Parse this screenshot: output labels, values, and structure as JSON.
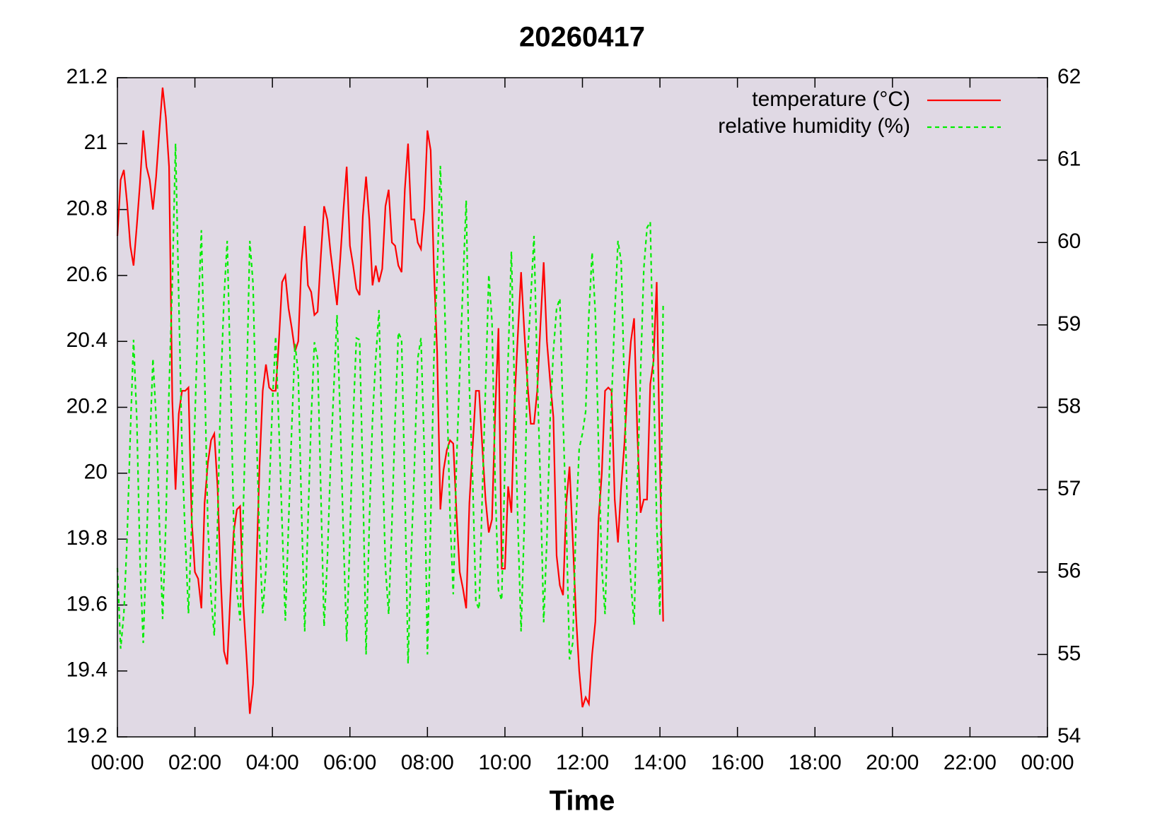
{
  "chart_data": {
    "type": "line",
    "title": "20260417",
    "xlabel": "Time",
    "x": [
      0,
      5,
      10,
      15,
      20,
      25,
      30,
      35,
      40,
      45,
      50,
      55,
      60,
      65,
      70,
      75,
      80,
      85,
      90,
      95,
      100,
      105,
      110,
      115,
      120,
      125,
      130,
      135,
      140,
      145,
      150,
      155,
      160,
      165,
      170,
      175,
      180,
      185,
      190,
      195,
      200,
      205,
      210,
      215,
      220,
      225,
      230,
      235,
      240,
      245,
      250,
      255,
      260,
      265,
      270,
      275,
      280,
      285,
      290,
      295,
      300,
      305,
      310,
      315,
      320,
      325,
      330,
      335,
      340,
      345,
      350,
      355,
      360,
      365,
      370,
      375,
      380,
      385,
      390,
      395,
      400,
      405,
      410,
      415,
      420,
      425,
      430,
      435,
      440,
      445,
      450,
      455,
      460,
      465,
      470,
      475,
      480,
      485,
      490,
      495,
      500,
      505,
      510,
      515,
      520,
      525,
      530,
      535,
      540,
      545,
      550,
      555,
      560,
      565,
      570,
      575,
      580,
      585,
      590,
      595,
      600,
      605,
      610,
      615,
      620,
      625,
      630,
      635,
      640,
      645,
      650,
      655,
      660,
      665,
      670,
      675,
      680,
      685,
      690,
      695,
      700,
      705,
      710,
      715,
      720,
      725,
      730,
      735,
      740,
      745,
      750,
      755,
      760,
      765,
      770,
      775,
      780,
      785,
      790,
      795,
      800,
      805,
      810,
      815,
      820,
      825,
      830,
      835,
      840,
      845
    ],
    "series": [
      {
        "name": "temperature (°C)",
        "color": "#ff0000",
        "linestyle": "solid",
        "axis": "y",
        "values": [
          20.72,
          20.89,
          20.92,
          20.82,
          20.69,
          20.63,
          20.75,
          20.88,
          21.04,
          20.93,
          20.89,
          20.8,
          20.9,
          21.04,
          21.17,
          21.08,
          20.93,
          20.22,
          19.95,
          20.18,
          20.25,
          20.25,
          20.26,
          19.86,
          19.7,
          19.68,
          19.59,
          19.91,
          20.03,
          20.1,
          20.12,
          19.96,
          19.68,
          19.46,
          19.42,
          19.63,
          19.82,
          19.89,
          19.9,
          19.6,
          19.44,
          19.27,
          19.36,
          19.7,
          20.02,
          20.25,
          20.33,
          20.26,
          20.25,
          20.25,
          20.4,
          20.58,
          20.6,
          20.5,
          20.44,
          20.37,
          20.4,
          20.64,
          20.75,
          20.57,
          20.55,
          20.48,
          20.49,
          20.66,
          20.81,
          20.77,
          20.67,
          20.59,
          20.51,
          20.65,
          20.8,
          20.93,
          20.69,
          20.63,
          20.56,
          20.54,
          20.78,
          20.9,
          20.77,
          20.57,
          20.63,
          20.58,
          20.62,
          20.81,
          20.86,
          20.7,
          20.69,
          20.63,
          20.61,
          20.86,
          21.0,
          20.77,
          20.77,
          20.7,
          20.68,
          20.8,
          21.04,
          20.98,
          20.62,
          20.37,
          19.89,
          20.01,
          20.07,
          20.1,
          20.09,
          19.88,
          19.7,
          19.65,
          19.59,
          19.91,
          20.08,
          20.25,
          20.25,
          20.08,
          19.92,
          19.82,
          19.86,
          20.19,
          20.44,
          19.71,
          19.71,
          19.96,
          19.88,
          20.22,
          20.42,
          20.61,
          20.43,
          20.27,
          20.15,
          20.15,
          20.25,
          20.45,
          20.64,
          20.4,
          20.28,
          20.17,
          19.75,
          19.66,
          19.63,
          19.91,
          20.02,
          19.8,
          19.57,
          19.4,
          19.29,
          19.32,
          19.3,
          19.45,
          19.55,
          19.86,
          20.0,
          20.25,
          20.26,
          20.25,
          19.92,
          19.79,
          19.96,
          20.09,
          20.27,
          20.4,
          20.47,
          20.12,
          19.88,
          19.92,
          19.92,
          20.27,
          20.34,
          20.58,
          20.03,
          19.55
        ]
      },
      {
        "name": "relative humidity (%)",
        "color": "#00ee00",
        "linestyle": "dashed",
        "axis": "y2",
        "values": [
          56.05,
          55.07,
          55.5,
          56.41,
          57.68,
          58.82,
          57.86,
          56.14,
          55.14,
          56.32,
          57.5,
          58.59,
          57.86,
          56.59,
          55.43,
          56.59,
          58.23,
          59.5,
          61.2,
          59.32,
          57.5,
          56.41,
          55.5,
          56.59,
          57.86,
          59.13,
          60.15,
          58.41,
          56.59,
          55.69,
          55.23,
          56.59,
          58.23,
          59.32,
          60.02,
          58.41,
          56.59,
          55.78,
          55.41,
          56.78,
          58.23,
          60.02,
          59.5,
          57.77,
          56.41,
          55.5,
          56.05,
          56.96,
          58.05,
          58.86,
          57.77,
          56.59,
          55.41,
          56.59,
          57.77,
          58.77,
          58.41,
          56.78,
          55.28,
          56.59,
          57.86,
          58.79,
          58.59,
          56.96,
          55.34,
          56.14,
          57.32,
          58.23,
          59.12,
          57.86,
          56.41,
          55.16,
          56.41,
          57.86,
          58.84,
          58.82,
          57.14,
          55.0,
          56.59,
          57.86,
          58.59,
          59.18,
          57.5,
          56.05,
          55.49,
          56.59,
          57.86,
          58.91,
          58.82,
          57.05,
          54.89,
          56.23,
          57.32,
          58.59,
          58.84,
          57.5,
          55.0,
          56.59,
          58.59,
          59.59,
          60.93,
          59.77,
          58.23,
          56.68,
          55.73,
          57.32,
          58.41,
          59.5,
          60.51,
          58.23,
          57.14,
          55.64,
          55.55,
          56.96,
          58.23,
          59.61,
          59.04,
          57.05,
          55.78,
          55.66,
          57.32,
          58.59,
          59.89,
          58.14,
          56.59,
          55.28,
          56.59,
          58.59,
          59.32,
          60.08,
          58.41,
          57.05,
          55.39,
          56.41,
          57.86,
          58.68,
          59.2,
          59.32,
          57.86,
          56.59,
          54.94,
          55.14,
          56.59,
          57.5,
          57.68,
          57.95,
          59.13,
          59.88,
          59.13,
          57.5,
          56.05,
          55.49,
          56.78,
          58.05,
          59.13,
          60.02,
          59.77,
          58.23,
          56.59,
          55.87,
          55.36,
          57.05,
          58.41,
          59.68,
          60.18,
          60.25,
          58.41,
          56.59,
          55.47,
          59.27
        ]
      }
    ],
    "xlim": [
      0,
      1440
    ],
    "xticks": [
      {
        "value": 0,
        "label": "00:00"
      },
      {
        "value": 120,
        "label": "02:00"
      },
      {
        "value": 240,
        "label": "04:00"
      },
      {
        "value": 360,
        "label": "06:00"
      },
      {
        "value": 480,
        "label": "08:00"
      },
      {
        "value": 600,
        "label": "10:00"
      },
      {
        "value": 720,
        "label": "12:00"
      },
      {
        "value": 840,
        "label": "14:00"
      },
      {
        "value": 960,
        "label": "16:00"
      },
      {
        "value": 1080,
        "label": "18:00"
      },
      {
        "value": 1200,
        "label": "20:00"
      },
      {
        "value": 1320,
        "label": "22:00"
      },
      {
        "value": 1440,
        "label": "00:00"
      }
    ],
    "ylim": [
      19.2,
      21.2
    ],
    "yticks": [
      19.2,
      19.4,
      19.6,
      19.8,
      20,
      20.2,
      20.4,
      20.6,
      20.8,
      21,
      21.2
    ],
    "y2lim": [
      54,
      62
    ],
    "y2ticks": [
      54,
      55,
      56,
      57,
      58,
      59,
      60,
      61,
      62
    ],
    "legend": "upper right",
    "grid": false,
    "background": "#e0d9e4"
  }
}
